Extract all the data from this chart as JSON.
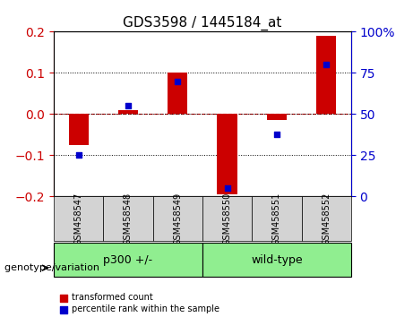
{
  "title": "GDS3598 / 1445184_at",
  "samples": [
    "GSM458547",
    "GSM458548",
    "GSM458549",
    "GSM458550",
    "GSM458551",
    "GSM458552"
  ],
  "transformed_count": [
    -0.075,
    0.01,
    0.1,
    -0.195,
    -0.015,
    0.19
  ],
  "percentile_rank": [
    25,
    55,
    70,
    5,
    38,
    80
  ],
  "groups": [
    {
      "label": "p300 +/-",
      "samples": [
        0,
        1,
        2
      ],
      "color": "#90ee90"
    },
    {
      "label": "wild-type",
      "samples": [
        3,
        4,
        5
      ],
      "color": "#90ee90"
    }
  ],
  "group_colors": [
    "#90ee90",
    "#90ee90"
  ],
  "ylim_left": [
    -0.2,
    0.2
  ],
  "ylim_right": [
    0,
    100
  ],
  "yticks_left": [
    -0.2,
    -0.1,
    0.0,
    0.1,
    0.2
  ],
  "yticks_right": [
    0,
    25,
    50,
    75,
    100
  ],
  "bar_color": "#cc0000",
  "dot_color": "#0000cc",
  "bar_width": 0.4,
  "legend_labels": [
    "transformed count",
    "percentile rank within the sample"
  ],
  "genotype_label": "genotype/variation",
  "group_labels": [
    "p300 +/-",
    "wild-type"
  ],
  "group_sample_ranges": [
    [
      0,
      2
    ],
    [
      3,
      5
    ]
  ],
  "xlabel_color": "black",
  "left_axis_color": "#cc0000",
  "right_axis_color": "#0000cc"
}
